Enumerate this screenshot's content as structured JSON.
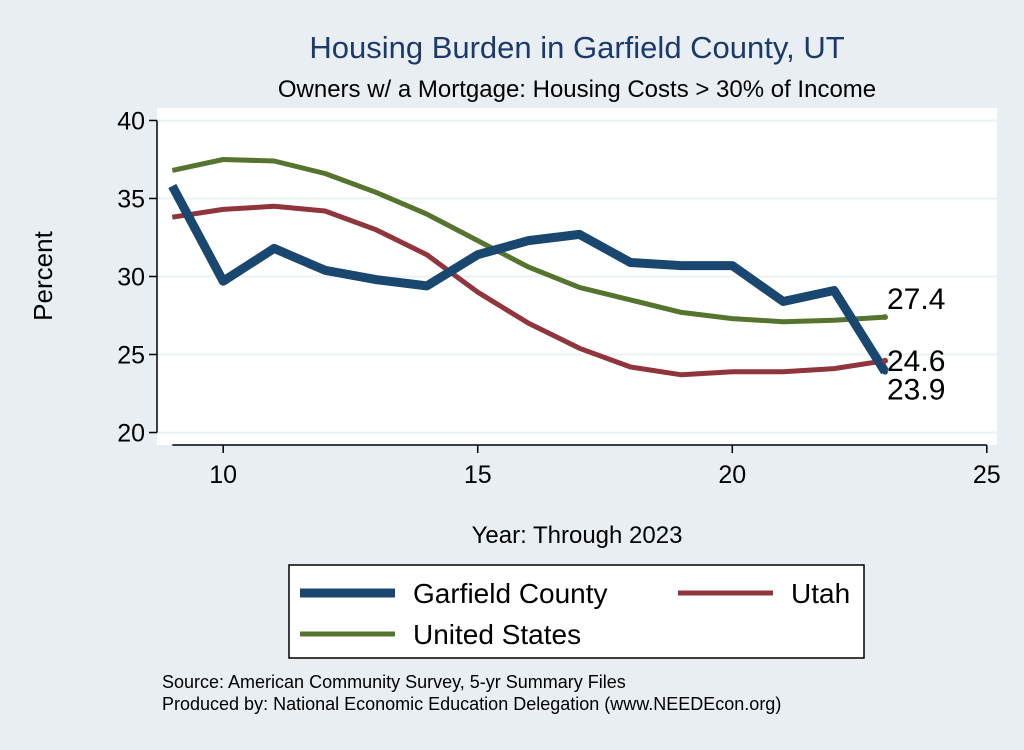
{
  "chart_data": {
    "type": "line",
    "title": "Housing Burden in Garfield County, UT",
    "subtitle": "Owners w/ a Mortgage: Housing Costs > 30% of Income",
    "xlabel": "Year: Through 2023",
    "ylabel": "Percent",
    "xlim": [
      8.7,
      25.2
    ],
    "ylim": [
      19.2,
      40.8
    ],
    "x_ticks": [
      10,
      15,
      20,
      25
    ],
    "y_ticks": [
      20,
      25,
      30,
      35,
      40
    ],
    "x": [
      9,
      10,
      11,
      12,
      13,
      14,
      15,
      16,
      17,
      18,
      19,
      20,
      21,
      22,
      23
    ],
    "series": [
      {
        "name": "Garfield County",
        "color": "#1a476f",
        "values": [
          35.8,
          29.7,
          31.8,
          30.4,
          29.8,
          29.4,
          31.4,
          32.3,
          32.7,
          30.9,
          30.7,
          30.7,
          28.4,
          29.1,
          23.9
        ],
        "end_label": "23.9"
      },
      {
        "name": "Utah",
        "color": "#90353b",
        "values": [
          33.8,
          34.3,
          34.5,
          34.2,
          33.0,
          31.4,
          29.0,
          27.0,
          25.4,
          24.2,
          23.7,
          23.9,
          23.9,
          24.1,
          24.6
        ],
        "end_label": "24.6"
      },
      {
        "name": "United States",
        "color": "#55752f",
        "values": [
          36.8,
          37.5,
          37.4,
          36.6,
          35.4,
          34.0,
          32.3,
          30.6,
          29.3,
          28.5,
          27.7,
          27.3,
          27.1,
          27.2,
          27.4
        ],
        "end_label": "27.4"
      }
    ],
    "grid": true,
    "legend_position": "bottom"
  },
  "footer": {
    "source": "Source: American Community Survey, 5-yr Summary Files",
    "produced": "Produced by: National Economic Education Delegation (www.NEEDEcon.org)"
  }
}
